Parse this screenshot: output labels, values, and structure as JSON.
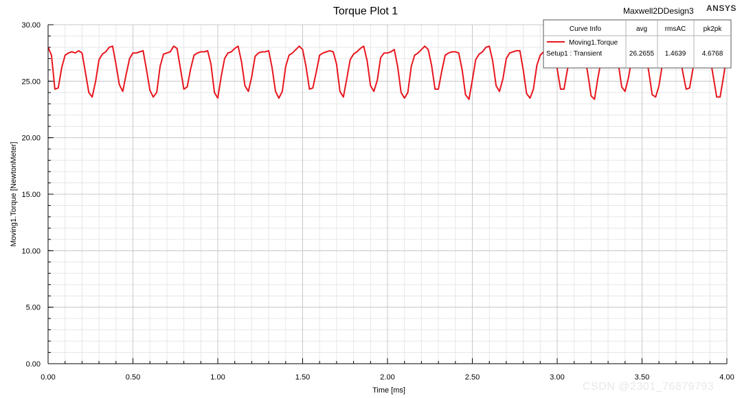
{
  "header": {
    "design_name": "Maxwell2DDesign3",
    "brand": "ANSYS"
  },
  "legend": {
    "headers": [
      "Curve Info",
      "avg",
      "rmsAC",
      "pk2pk"
    ],
    "curve_name": "Moving1.Torque",
    "setup_name": "Setup1 : Transient",
    "avg": "26.2655",
    "rmsAC": "1.4639",
    "pk2pk": "4.6768"
  },
  "watermark": "CSDN @2301_76879793",
  "colors": {
    "series": "#e8141c",
    "grid_major": "#c8c8c8",
    "grid_minor": "#e6e6e6",
    "axis": "#000000"
  },
  "chart_data": {
    "type": "line",
    "title": "Torque Plot 1",
    "xlabel": "Time [ms]",
    "ylabel": "Moving1.Torque [NewtonMeter]",
    "xlim": [
      0,
      4.0
    ],
    "ylim": [
      0,
      30
    ],
    "x_ticks": [
      "0.00",
      "0.50",
      "1.00",
      "1.50",
      "2.00",
      "2.50",
      "3.00",
      "3.50",
      "4.00"
    ],
    "y_ticks": [
      "0.00",
      "5.00",
      "10.00",
      "15.00",
      "20.00",
      "25.00",
      "30.00"
    ],
    "grid": true,
    "legend_position": "top-right",
    "series": [
      {
        "name": "Moving1.Torque",
        "x": [
          0.0,
          0.02,
          0.04,
          0.06,
          0.08,
          0.1,
          0.12,
          0.14,
          0.16,
          0.18,
          0.2,
          0.22,
          0.24,
          0.26,
          0.28,
          0.3,
          0.32,
          0.34,
          0.36,
          0.38,
          0.4,
          0.42,
          0.44,
          0.46,
          0.48,
          0.5,
          0.52,
          0.54,
          0.56,
          0.58,
          0.6,
          0.62,
          0.64,
          0.66,
          0.68,
          0.7,
          0.72,
          0.74,
          0.76,
          0.78,
          0.8,
          0.82,
          0.84,
          0.86,
          0.88,
          0.9,
          0.92,
          0.94,
          0.96,
          0.98,
          1.0,
          1.02,
          1.04,
          1.06,
          1.08,
          1.1,
          1.12,
          1.14,
          1.16,
          1.18,
          1.2,
          1.22,
          1.24,
          1.26,
          1.28,
          1.3,
          1.32,
          1.34,
          1.36,
          1.38,
          1.4,
          1.42,
          1.44,
          1.46,
          1.48,
          1.5,
          1.52,
          1.54,
          1.56,
          1.58,
          1.6,
          1.62,
          1.64,
          1.66,
          1.68,
          1.7,
          1.72,
          1.74,
          1.76,
          1.78,
          1.8,
          1.82,
          1.84,
          1.86,
          1.88,
          1.9,
          1.92,
          1.94,
          1.96,
          1.98,
          2.0,
          2.02,
          2.04,
          2.06,
          2.08,
          2.1,
          2.12,
          2.14,
          2.16,
          2.18,
          2.2,
          2.22,
          2.24,
          2.26,
          2.28,
          2.3,
          2.32,
          2.34,
          2.36,
          2.38,
          2.4,
          2.42,
          2.44,
          2.46,
          2.48,
          2.5,
          2.52,
          2.54,
          2.56,
          2.58,
          2.6,
          2.62,
          2.64,
          2.66,
          2.68,
          2.7,
          2.72,
          2.74,
          2.76,
          2.78,
          2.8,
          2.82,
          2.84,
          2.86,
          2.88,
          2.9,
          2.92,
          2.94,
          2.96,
          2.98,
          3.0,
          3.02,
          3.04,
          3.06,
          3.08,
          3.1,
          3.12,
          3.14,
          3.16,
          3.18,
          3.2,
          3.22,
          3.24,
          3.26,
          3.28,
          3.3,
          3.32,
          3.34,
          3.36,
          3.38,
          3.4,
          3.42,
          3.44,
          3.46,
          3.48,
          3.5,
          3.52,
          3.54,
          3.56,
          3.58,
          3.6,
          3.62,
          3.64,
          3.66,
          3.68,
          3.7,
          3.72,
          3.74,
          3.76,
          3.78,
          3.8,
          3.82,
          3.84,
          3.86,
          3.88,
          3.9,
          3.92,
          3.94,
          3.96,
          3.98,
          4.0
        ],
        "y": [
          28.0,
          27.3,
          24.3,
          24.4,
          26.2,
          27.3,
          27.5,
          27.6,
          27.5,
          27.7,
          27.5,
          25.8,
          24.0,
          23.6,
          25.0,
          26.9,
          27.4,
          27.6,
          28.0,
          28.1,
          26.5,
          24.7,
          24.1,
          25.6,
          27.0,
          27.5,
          27.5,
          27.6,
          27.7,
          26.0,
          24.2,
          23.6,
          24.0,
          26.3,
          27.4,
          27.5,
          27.6,
          28.1,
          27.9,
          26.1,
          24.3,
          24.5,
          26.1,
          27.3,
          27.5,
          27.6,
          27.6,
          27.7,
          26.5,
          24.0,
          23.5,
          25.4,
          27.0,
          27.5,
          27.6,
          27.9,
          28.1,
          26.7,
          24.6,
          24.1,
          25.4,
          27.2,
          27.5,
          27.6,
          27.6,
          27.7,
          26.2,
          24.1,
          23.5,
          24.1,
          26.3,
          27.3,
          27.5,
          27.8,
          28.1,
          27.8,
          26.3,
          24.3,
          24.4,
          25.8,
          27.3,
          27.5,
          27.6,
          27.7,
          27.6,
          26.5,
          24.1,
          23.6,
          25.2,
          26.9,
          27.4,
          27.6,
          27.9,
          28.1,
          26.8,
          24.6,
          24.1,
          25.1,
          27.1,
          27.5,
          27.5,
          27.6,
          27.8,
          26.3,
          24.0,
          23.5,
          24.0,
          26.3,
          27.3,
          27.5,
          27.8,
          28.1,
          27.8,
          26.4,
          24.3,
          24.3,
          25.9,
          27.3,
          27.5,
          27.6,
          27.6,
          27.5,
          26.0,
          23.8,
          23.4,
          25.1,
          26.9,
          27.4,
          27.6,
          28.0,
          28.1,
          26.8,
          24.6,
          24.1,
          25.2,
          27.0,
          27.5,
          27.6,
          27.7,
          27.7,
          26.0,
          23.9,
          23.5,
          24.3,
          26.4,
          27.3,
          27.6,
          28.0,
          28.1,
          27.8,
          26.1,
          24.3,
          24.3,
          26.0,
          27.3,
          27.5,
          27.6,
          27.6,
          27.4,
          25.7,
          23.7,
          23.4,
          25.3,
          26.9,
          27.4,
          27.6,
          28.0,
          28.1,
          26.6,
          24.5,
          24.1,
          25.3,
          27.0,
          27.5,
          27.6,
          27.7,
          27.6,
          25.8,
          23.8,
          23.6,
          24.6,
          26.5,
          27.3,
          27.6,
          28.0,
          28.1,
          27.6,
          25.8,
          24.3,
          24.4,
          26.1,
          27.4,
          27.5,
          27.6,
          27.6,
          27.2,
          25.4,
          23.6,
          23.6,
          25.4,
          27.4
        ]
      }
    ]
  }
}
